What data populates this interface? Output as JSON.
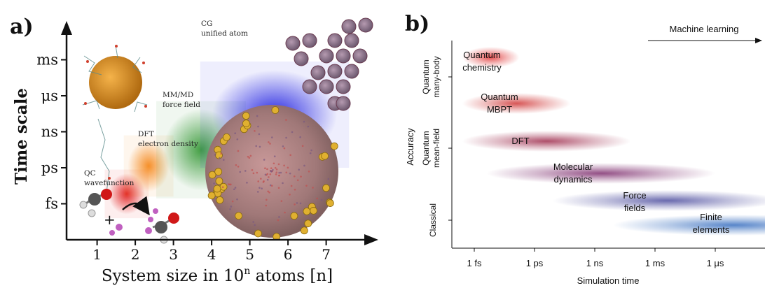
{
  "chart_data": [
    {
      "panel_label": "a)",
      "type": "diagram",
      "ylabel": "Time scale",
      "xlabel_parts": {
        "prefix": "System size in 10",
        "sup": "n",
        "suffix": " atoms [n]"
      },
      "x_ticks": [
        "1",
        "2",
        "3",
        "4",
        "5",
        "6",
        "7"
      ],
      "y_ticks": [
        "fs",
        "ps",
        "ns",
        "μs",
        "ms"
      ],
      "regions": [
        {
          "label_lines": [
            "QC",
            "wavefunction"
          ],
          "color": "#e02020",
          "xr": [
            1.2,
            2.35
          ],
          "yr": [
            0.6,
            1.95
          ]
        },
        {
          "label_lines": [
            "DFT",
            "electron density"
          ],
          "color": "#f58a1f",
          "xr": [
            1.7,
            3.0
          ],
          "yr": [
            1.2,
            2.9
          ]
        },
        {
          "label_lines": [
            "MM/MD",
            "force field"
          ],
          "color": "#3a9a3a",
          "xr": [
            2.55,
            4.9
          ],
          "yr": [
            1.15,
            3.85
          ]
        },
        {
          "label_lines": [
            "CG",
            "unified atom"
          ],
          "color": "#2020e0",
          "xr": [
            3.7,
            7.6
          ],
          "yr": [
            2.0,
            4.95
          ]
        }
      ]
    },
    {
      "panel_label": "b)",
      "type": "diagram",
      "ylabel": "Accuracy",
      "xlabel": "Simulation time",
      "top_arrow_label": "Machine learning",
      "x_ticks": [
        "1 fs",
        "1 ps",
        "1 ns",
        "1 ms",
        "1 μs"
      ],
      "y_categories": [
        "Quantum many-body",
        "Quantum mean-field",
        "Classical"
      ],
      "methods": [
        {
          "label_lines": [
            "Quantum",
            "chemistry"
          ],
          "color": "#e03030",
          "t": [
            -0.2,
            0.75
          ]
        },
        {
          "label_lines": [
            "Quantum",
            "MBPT"
          ],
          "color": "#d03838",
          "t": [
            -0.2,
            1.6
          ]
        },
        {
          "label_lines": [
            "DFT"
          ],
          "color": "#a03050",
          "t": [
            -0.2,
            2.6
          ]
        },
        {
          "label_lines": [
            "Molecular",
            "dynamics"
          ],
          "color": "#803070",
          "t": [
            0.2,
            4.0
          ]
        },
        {
          "label_lines": [
            "Force",
            "fields"
          ],
          "color": "#5050a0",
          "t": [
            1.3,
            5.1
          ]
        },
        {
          "label_lines": [
            "Finite",
            "elements"
          ],
          "color": "#3a70c0",
          "t": [
            2.3,
            6.3
          ]
        }
      ]
    }
  ]
}
